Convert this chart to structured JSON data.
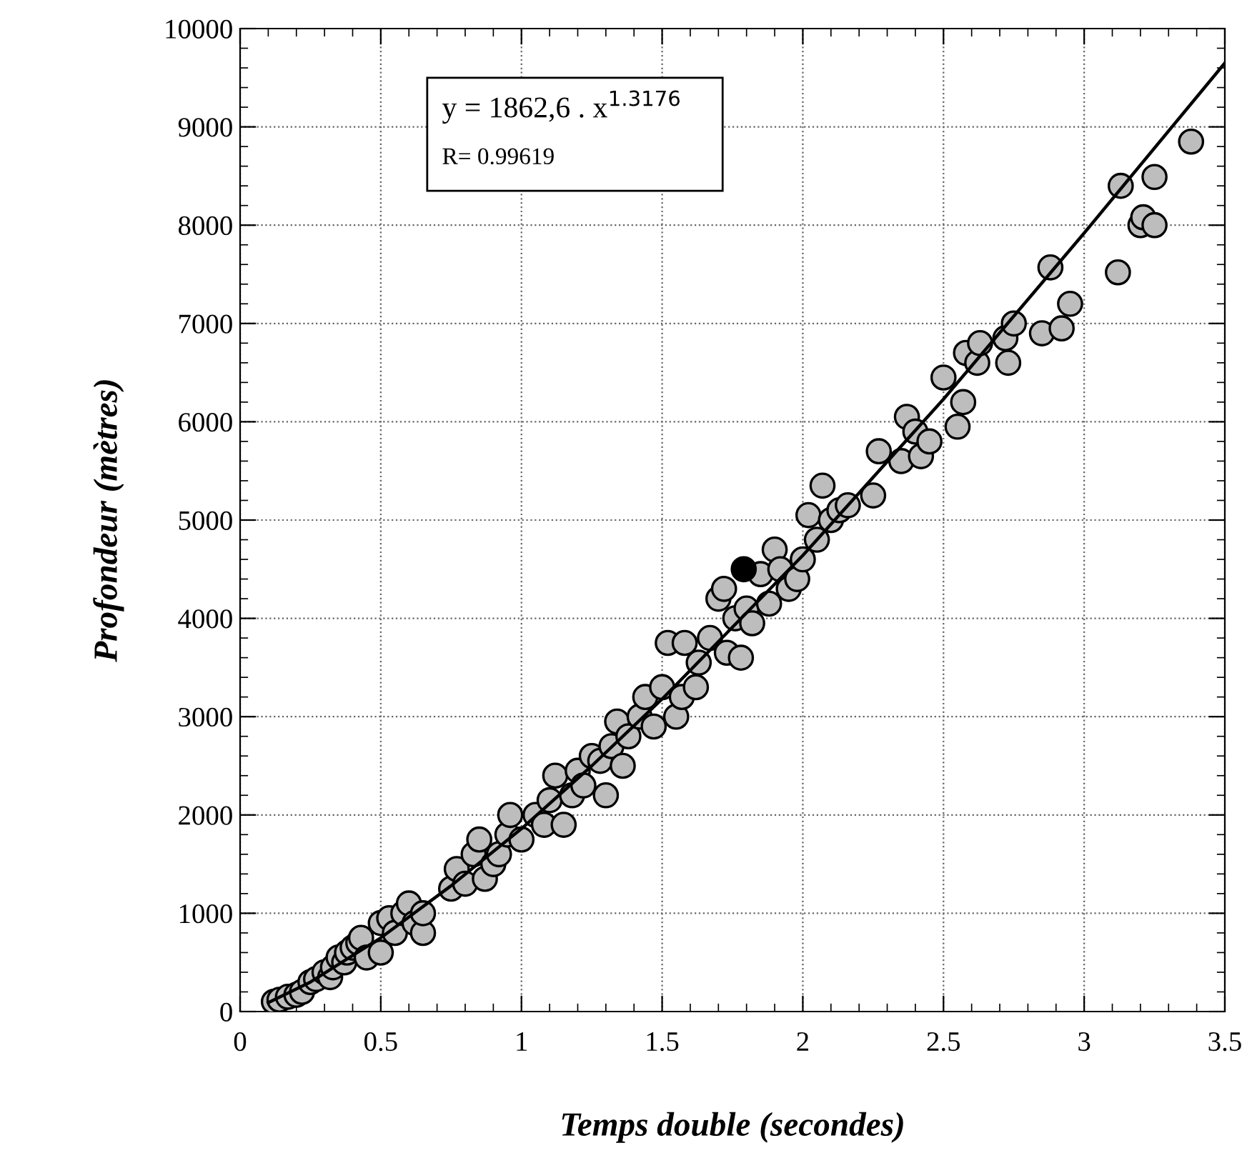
{
  "chart_data": {
    "type": "scatter",
    "xlabel": "Temps double (secondes)",
    "ylabel": "Profondeur (mètres)",
    "annotations": [
      "y = 1862,6 . x$^{1.3176}$",
      "R= 0.99619"
    ],
    "xlim": [
      0,
      3.5
    ],
    "xticks": [
      0,
      0.5,
      1,
      1.5,
      2,
      2.5,
      3,
      3.5
    ],
    "ylim": [
      0,
      10000
    ],
    "yticks": [
      0,
      1000,
      2000,
      3000,
      4000,
      5000,
      6000,
      7000,
      8000,
      9000,
      10000
    ],
    "grid": true,
    "legend": false,
    "marker": "circle",
    "series": [
      {
        "color": "#bdbdbd",
        "x": [
          0.12,
          0.14,
          0.17,
          0.2,
          0.22,
          0.25,
          0.27,
          0.3,
          0.32,
          0.33,
          0.35,
          0.37,
          0.38,
          0.4,
          0.42,
          0.43,
          0.45,
          0.5,
          0.5,
          0.53,
          0.55,
          0.58,
          0.6,
          0.62,
          0.65,
          0.65,
          0.75,
          0.77,
          0.8,
          0.83,
          0.85,
          0.87,
          0.9,
          0.92,
          0.95,
          0.96,
          1.0,
          1.05,
          1.08,
          1.1,
          1.12,
          1.15,
          1.18,
          1.2,
          1.22,
          1.25,
          1.28,
          1.3,
          1.32,
          1.34,
          1.36,
          1.38,
          1.42,
          1.44,
          1.47,
          1.5,
          1.52,
          1.55,
          1.57,
          1.58,
          1.62,
          1.63,
          1.67,
          1.7,
          1.72,
          1.73,
          1.76,
          1.78,
          1.8,
          1.82,
          1.85,
          1.88,
          1.9,
          1.92,
          1.95,
          1.98,
          2.0,
          2.02,
          2.05,
          2.07,
          2.1,
          2.13,
          2.16,
          2.25,
          2.27,
          2.35,
          2.37,
          2.4,
          2.42,
          2.45,
          2.5,
          2.55,
          2.57,
          2.58,
          2.62,
          2.63,
          2.72,
          2.73,
          2.75,
          2.85,
          2.88,
          2.92,
          2.95,
          3.12,
          3.13,
          3.2,
          3.21,
          3.25,
          3.25,
          3.38
        ],
        "values": [
          100,
          120,
          150,
          170,
          200,
          300,
          330,
          400,
          350,
          450,
          550,
          500,
          600,
          650,
          700,
          750,
          550,
          600,
          900,
          950,
          800,
          1000,
          1100,
          900,
          800,
          1000,
          1250,
          1450,
          1300,
          1600,
          1750,
          1350,
          1500,
          1600,
          1800,
          2000,
          1750,
          2000,
          1900,
          2150,
          2400,
          1900,
          2200,
          2450,
          2300,
          2600,
          2550,
          2200,
          2700,
          2950,
          2500,
          2800,
          3000,
          3200,
          2900,
          3300,
          3750,
          3000,
          3200,
          3750,
          3300,
          3550,
          3800,
          4200,
          4300,
          3650,
          4000,
          3600,
          4100,
          3950,
          4450,
          4150,
          4700,
          4500,
          4300,
          4400,
          4600,
          5050,
          4800,
          5350,
          5000,
          5100,
          5150,
          5250,
          5700,
          5600,
          6050,
          5900,
          5650,
          5800,
          6450,
          5950,
          6200,
          6700,
          6600,
          6800,
          6850,
          6600,
          7000,
          6900,
          7570,
          6950,
          7200,
          7520,
          8400,
          8000,
          8080,
          8490,
          8000,
          8850
        ]
      },
      {
        "color": "#000000",
        "x": [
          1.79
        ],
        "values": [
          4500
        ]
      },
      {
        "type": "line",
        "color": "#000000",
        "line_style": "solid",
        "marker": "none",
        "x": [
          0.1,
          0.25,
          0.5,
          0.75,
          1,
          1.25,
          1.5,
          2,
          2.5,
          3,
          3.5
        ],
        "values": [
          90,
          300,
          750,
          1280,
          1860,
          2500,
          3180,
          4640,
          6230,
          7920,
          9650
        ]
      }
    ]
  }
}
